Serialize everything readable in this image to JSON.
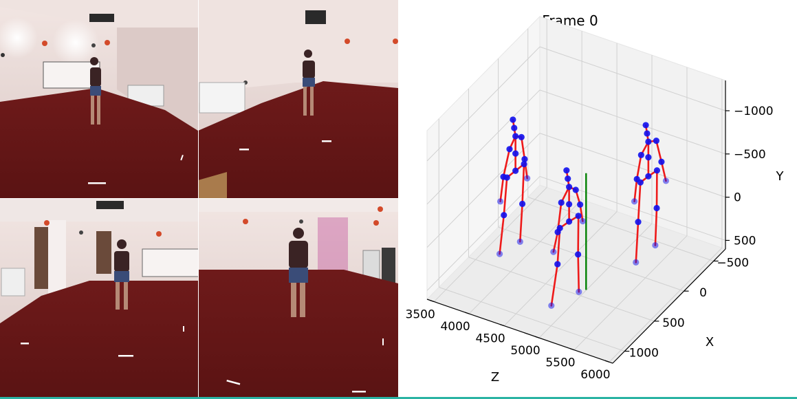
{
  "title": "Frame 0",
  "colors": {
    "joint": "#1010ee",
    "bone": "#ee1a1a",
    "center": "#008000",
    "carpet": "#6b1717",
    "wall": "#e6d7d4",
    "shirt": "#3a2324",
    "shorts": "#3a4c78"
  },
  "chart_data": {
    "type": "scatter",
    "projection": "3d",
    "title": "Frame 0",
    "xlabel": "Z",
    "ylabel": "X",
    "zlabel": "Y",
    "xlim": [
      3400,
      6050
    ],
    "ylim": [
      -700,
      1200
    ],
    "zlim": [
      600,
      -1350
    ],
    "xticks": [
      3500,
      4000,
      4500,
      5000,
      5500,
      6000
    ],
    "yticks": [
      -500,
      0,
      500,
      1000
    ],
    "zticks": [
      -1000,
      -500,
      0,
      500
    ],
    "grid": true,
    "skeleton_bones": [
      [
        0,
        1
      ],
      [
        1,
        2
      ],
      [
        2,
        3
      ],
      [
        0,
        4
      ],
      [
        4,
        5
      ],
      [
        5,
        6
      ],
      [
        0,
        7
      ],
      [
        7,
        8
      ],
      [
        8,
        9
      ],
      [
        9,
        10
      ],
      [
        8,
        11
      ],
      [
        11,
        12
      ],
      [
        12,
        13
      ],
      [
        8,
        14
      ],
      [
        14,
        15
      ],
      [
        15,
        16
      ]
    ],
    "series": [
      {
        "joints": [
          [
            3900,
            300,
            -400
          ],
          [
            3880,
            420,
            -400
          ],
          [
            3870,
            460,
            10
          ],
          [
            3860,
            520,
            420
          ],
          [
            3920,
            180,
            -400
          ],
          [
            3930,
            220,
            30
          ],
          [
            3940,
            270,
            430
          ],
          [
            3900,
            300,
            -600
          ],
          [
            3900,
            300,
            -800
          ],
          [
            3890,
            310,
            -900
          ],
          [
            3880,
            320,
            -1000
          ],
          [
            3900,
            400,
            -720
          ],
          [
            3880,
            480,
            -450
          ],
          [
            3870,
            520,
            -190
          ],
          [
            3900,
            200,
            -720
          ],
          [
            3920,
            170,
            -450
          ],
          [
            3940,
            150,
            -220
          ]
        ]
      },
      {
        "joints": [
          [
            4750,
            400,
            -120
          ],
          [
            4720,
            520,
            -120
          ],
          [
            4720,
            560,
            270
          ],
          [
            4700,
            640,
            700
          ],
          [
            4790,
            290,
            -120
          ],
          [
            4810,
            320,
            300
          ],
          [
            4830,
            330,
            720
          ],
          [
            4750,
            400,
            -320
          ],
          [
            4750,
            400,
            -520
          ],
          [
            4740,
            410,
            -620
          ],
          [
            4730,
            420,
            -720
          ],
          [
            4740,
            520,
            -420
          ],
          [
            4740,
            580,
            -120
          ],
          [
            4730,
            640,
            70
          ],
          [
            4760,
            300,
            -420
          ],
          [
            4780,
            250,
            -220
          ],
          [
            4800,
            230,
            -20
          ]
        ]
      },
      {
        "joints": [
          [
            5500,
            -50,
            -540
          ],
          [
            5480,
            60,
            -540
          ],
          [
            5490,
            110,
            -120
          ],
          [
            5500,
            160,
            310
          ],
          [
            5530,
            -160,
            -540
          ],
          [
            5560,
            -120,
            -140
          ],
          [
            5590,
            -60,
            240
          ],
          [
            5500,
            -50,
            -760
          ],
          [
            5500,
            -50,
            -940
          ],
          [
            5490,
            -40,
            -1040
          ],
          [
            5480,
            -30,
            -1140
          ],
          [
            5490,
            60,
            -860
          ],
          [
            5480,
            120,
            -620
          ],
          [
            5470,
            150,
            -380
          ],
          [
            5520,
            -160,
            -880
          ],
          [
            5560,
            -200,
            -620
          ],
          [
            5590,
            -240,
            -380
          ]
        ]
      }
    ],
    "center_line": {
      "z": 4950,
      "x": 350,
      "y_range": [
        -700,
        650
      ]
    }
  }
}
